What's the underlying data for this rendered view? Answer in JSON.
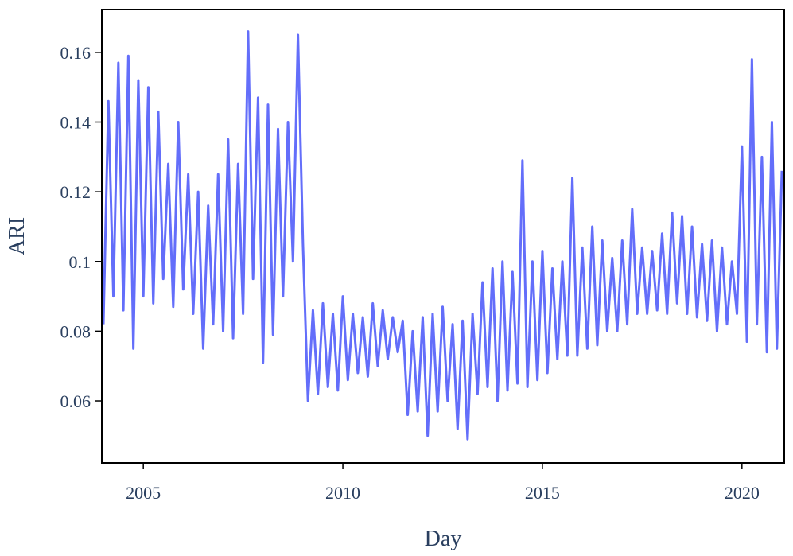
{
  "chart_data": {
    "type": "line",
    "x_label": "Day",
    "y_label": "ARI",
    "color": "#636efa",
    "xlim": [
      2003.96,
      2021.06
    ],
    "xticks": [
      2005,
      2010,
      2015,
      2020
    ],
    "ylim": [
      0.0422,
      0.1723
    ],
    "yticks": [
      0.06,
      0.08,
      0.1,
      0.12,
      0.14,
      0.16
    ],
    "grid": false,
    "x": [
      2004,
      2004.125,
      2004.25,
      2004.375,
      2004.5,
      2004.625,
      2004.75,
      2004.875,
      2005,
      2005.125,
      2005.25,
      2005.375,
      2005.5,
      2005.625,
      2005.75,
      2005.875,
      2006,
      2006.125,
      2006.25,
      2006.375,
      2006.5,
      2006.625,
      2006.75,
      2006.875,
      2007,
      2007.125,
      2007.25,
      2007.375,
      2007.5,
      2007.625,
      2007.75,
      2007.875,
      2008,
      2008.125,
      2008.25,
      2008.375,
      2008.5,
      2008.625,
      2008.75,
      2008.875,
      2009,
      2009.125,
      2009.25,
      2009.375,
      2009.5,
      2009.625,
      2009.75,
      2009.875,
      2010,
      2010.125,
      2010.25,
      2010.375,
      2010.5,
      2010.625,
      2010.75,
      2010.875,
      2011,
      2011.125,
      2011.25,
      2011.375,
      2011.5,
      2011.625,
      2011.75,
      2011.875,
      2012,
      2012.125,
      2012.25,
      2012.375,
      2012.5,
      2012.625,
      2012.75,
      2012.875,
      2013,
      2013.125,
      2013.25,
      2013.375,
      2013.5,
      2013.625,
      2013.75,
      2013.875,
      2014,
      2014.125,
      2014.25,
      2014.375,
      2014.5,
      2014.625,
      2014.75,
      2014.875,
      2015,
      2015.125,
      2015.25,
      2015.375,
      2015.5,
      2015.625,
      2015.75,
      2015.875,
      2016,
      2016.125,
      2016.25,
      2016.375,
      2016.5,
      2016.625,
      2016.75,
      2016.875,
      2017,
      2017.125,
      2017.25,
      2017.375,
      2017.5,
      2017.625,
      2017.75,
      2017.875,
      2018,
      2018.125,
      2018.25,
      2018.375,
      2018.5,
      2018.625,
      2018.75,
      2018.875,
      2019,
      2019.125,
      2019.25,
      2019.375,
      2019.5,
      2019.625,
      2019.75,
      2019.875,
      2020,
      2020.125,
      2020.25,
      2020.375,
      2020.5,
      2020.625,
      2020.75,
      2020.875,
      2021
    ],
    "values": [
      0.082,
      0.146,
      0.09,
      0.157,
      0.086,
      0.159,
      0.075,
      0.152,
      0.09,
      0.15,
      0.088,
      0.143,
      0.095,
      0.128,
      0.087,
      0.14,
      0.092,
      0.125,
      0.085,
      0.12,
      0.075,
      0.116,
      0.082,
      0.125,
      0.08,
      0.135,
      0.078,
      0.128,
      0.085,
      0.166,
      0.095,
      0.147,
      0.071,
      0.145,
      0.079,
      0.138,
      0.09,
      0.14,
      0.1,
      0.165,
      0.105,
      0.06,
      0.086,
      0.062,
      0.088,
      0.064,
      0.085,
      0.063,
      0.09,
      0.066,
      0.085,
      0.068,
      0.084,
      0.067,
      0.088,
      0.07,
      0.086,
      0.072,
      0.084,
      0.074,
      0.083,
      0.056,
      0.08,
      0.057,
      0.084,
      0.05,
      0.085,
      0.057,
      0.087,
      0.06,
      0.082,
      0.052,
      0.083,
      0.049,
      0.085,
      0.062,
      0.094,
      0.064,
      0.098,
      0.06,
      0.1,
      0.063,
      0.097,
      0.065,
      0.129,
      0.064,
      0.1,
      0.066,
      0.103,
      0.068,
      0.098,
      0.072,
      0.1,
      0.073,
      0.124,
      0.073,
      0.104,
      0.075,
      0.11,
      0.076,
      0.106,
      0.08,
      0.101,
      0.08,
      0.106,
      0.082,
      0.115,
      0.085,
      0.104,
      0.085,
      0.103,
      0.086,
      0.108,
      0.085,
      0.114,
      0.088,
      0.113,
      0.085,
      0.11,
      0.084,
      0.105,
      0.083,
      0.106,
      0.08,
      0.104,
      0.082,
      0.1,
      0.085,
      0.133,
      0.077,
      0.158,
      0.082,
      0.13,
      0.074,
      0.14,
      0.075,
      0.126
    ]
  }
}
